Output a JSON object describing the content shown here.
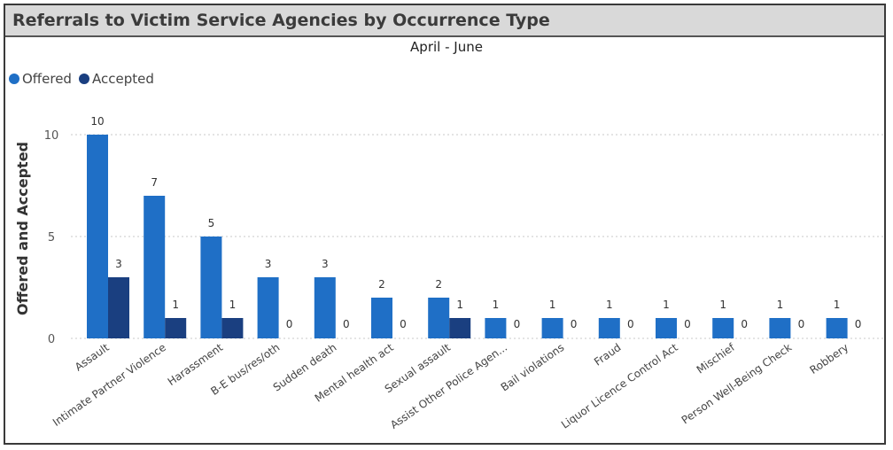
{
  "header": {
    "title": "Referrals to Victim Service Agencies by Occurrence Type"
  },
  "colors": {
    "offered": "#1f6fc6",
    "accepted": "#1a3f80",
    "grid": "#c8c8c8",
    "text": "#333333"
  },
  "chart_data": {
    "type": "bar",
    "subtitle": "April - June",
    "ylabel": "Offered and Accepted",
    "xlabel": "",
    "ylim": [
      0,
      11
    ],
    "yticks": [
      0,
      5,
      10
    ],
    "grid": true,
    "legend_position": "top-left",
    "categories": [
      "Assault",
      "Intimate Partner Violence",
      "Harassment",
      "B-E bus/res/oth",
      "Sudden death",
      "Mental health act",
      "Sexual assault",
      "Assist Other Police Agen...",
      "Bail violations",
      "Fraud",
      "Liquor Licence Control Act",
      "Mischief",
      "Person Well-Being Check",
      "Robbery"
    ],
    "series": [
      {
        "name": "Offered",
        "values": [
          10,
          7,
          5,
          3,
          3,
          2,
          2,
          1,
          1,
          1,
          1,
          1,
          1,
          1
        ]
      },
      {
        "name": "Accepted",
        "values": [
          3,
          1,
          1,
          0,
          0,
          0,
          1,
          0,
          0,
          0,
          0,
          0,
          0,
          0
        ]
      }
    ]
  }
}
